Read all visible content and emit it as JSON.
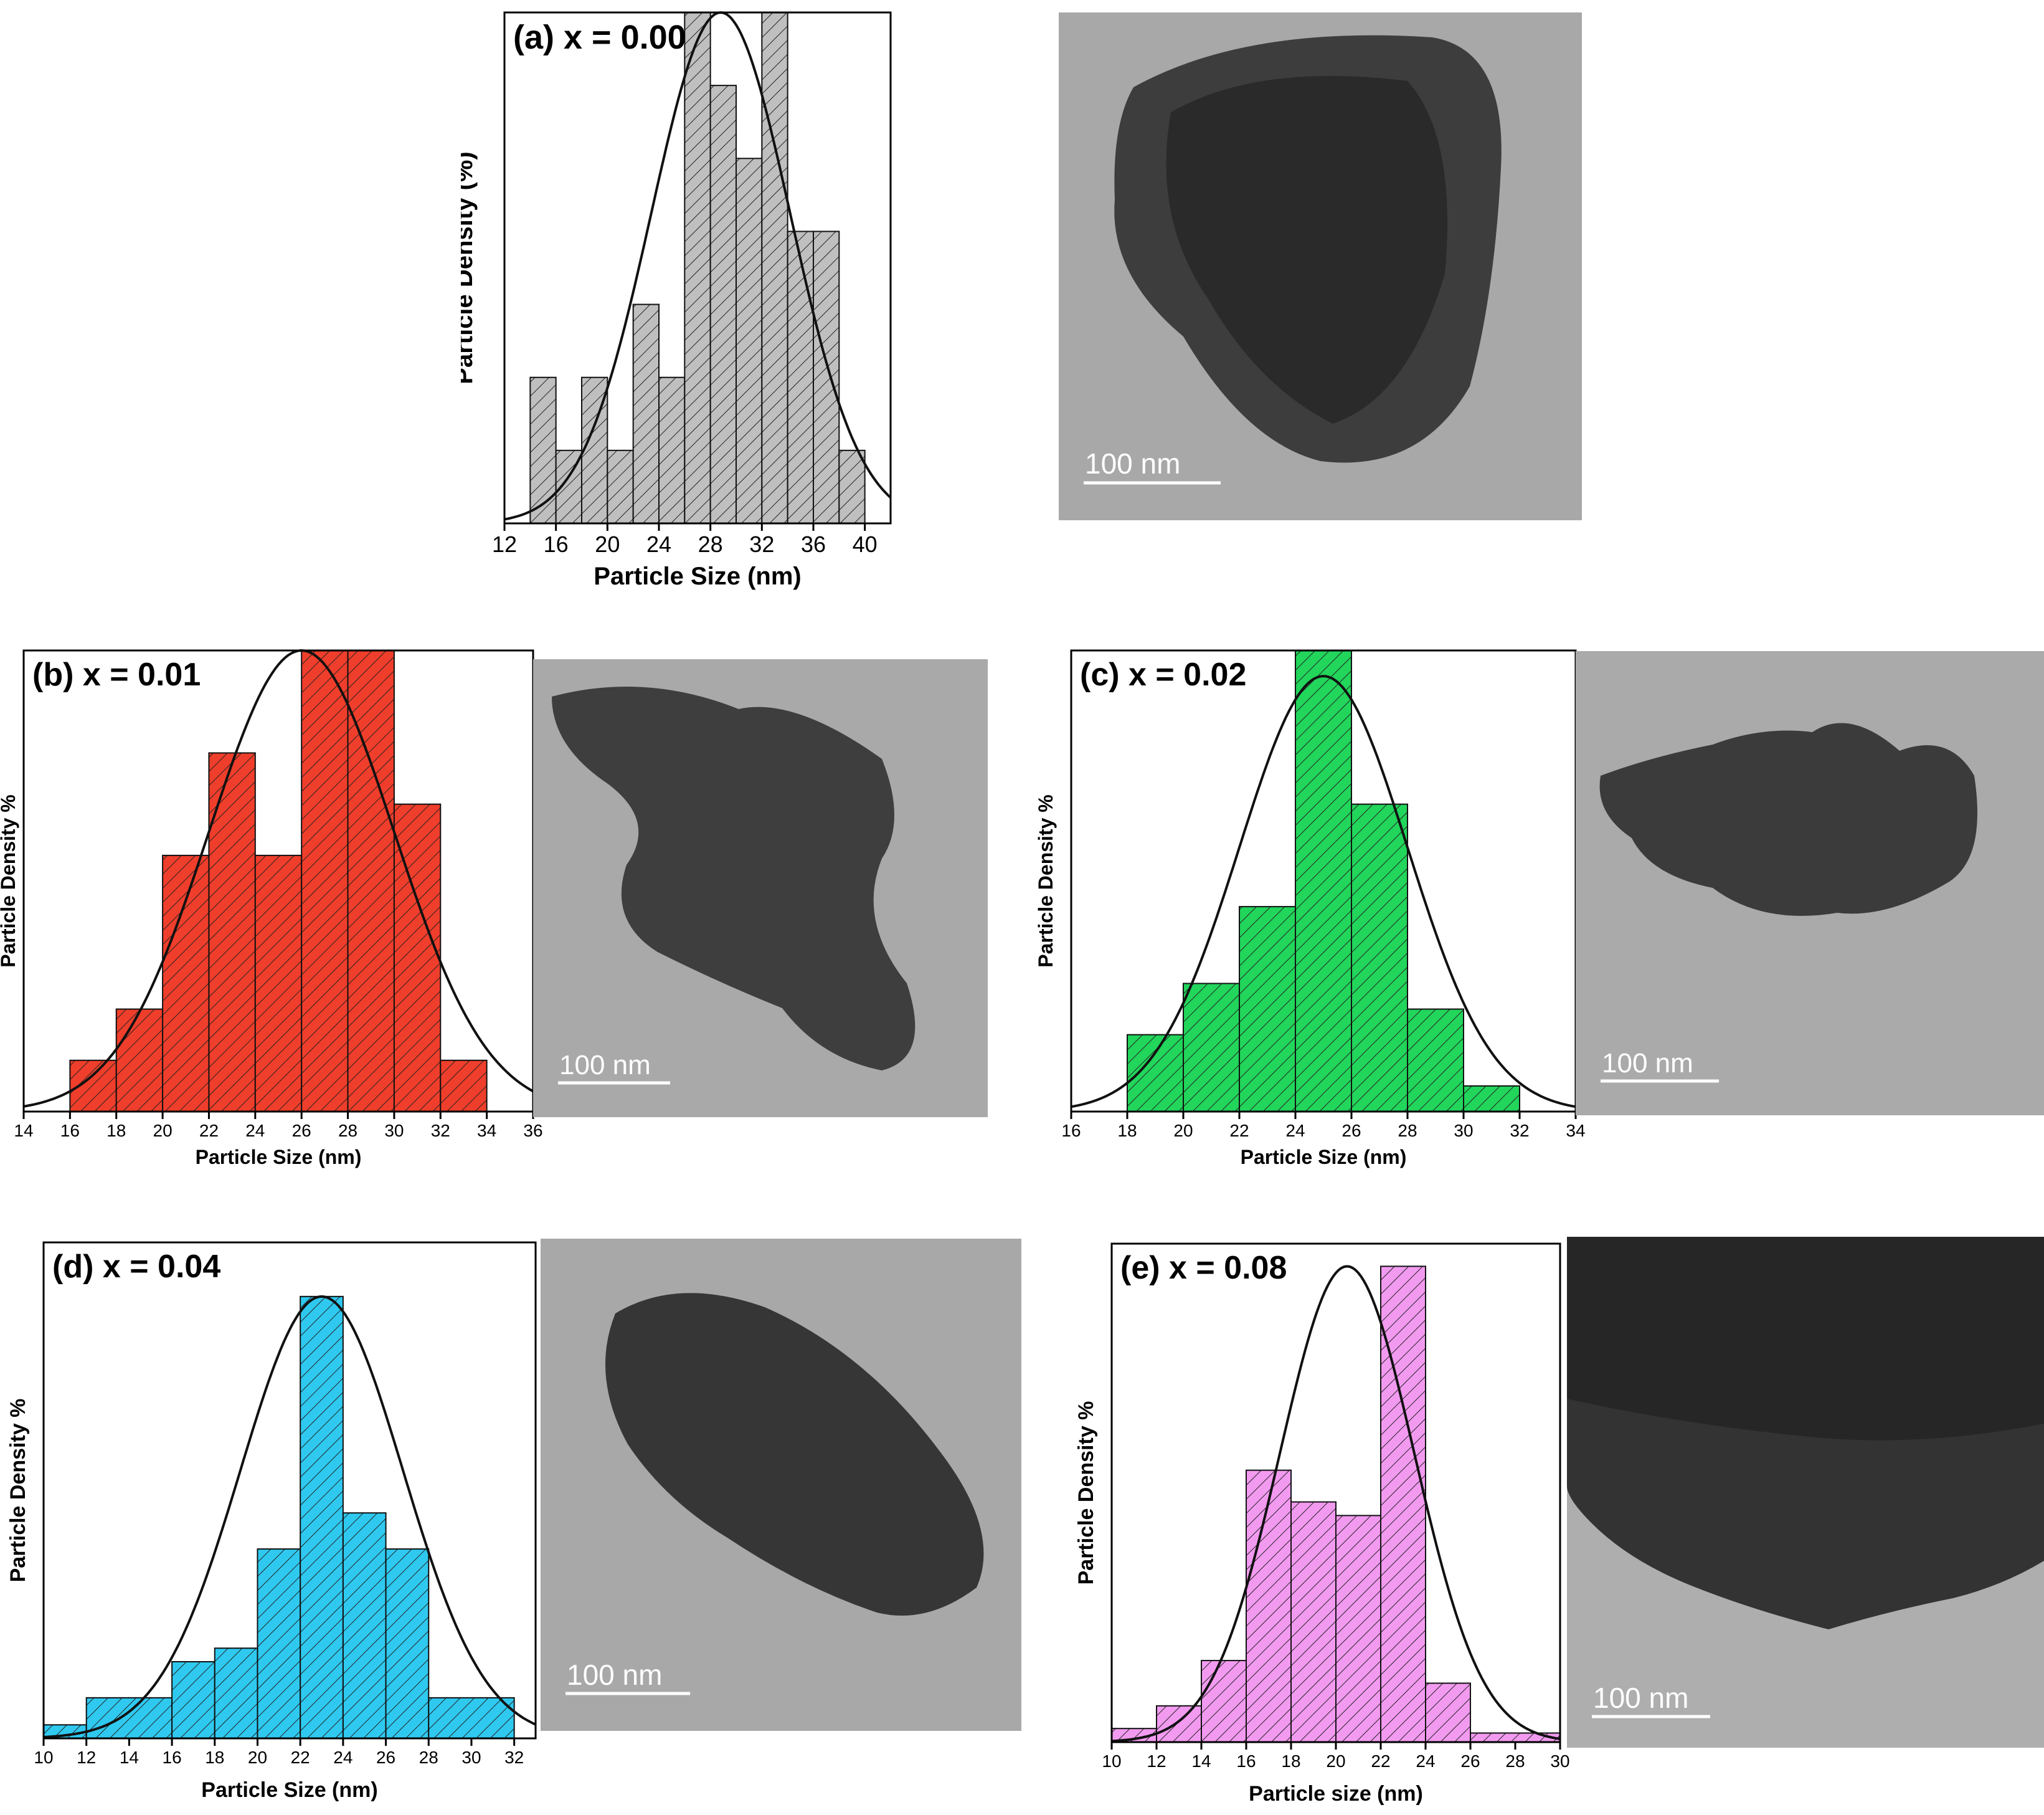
{
  "colors": {
    "a": "#bfbfbf",
    "b": "#ef3e2b",
    "c": "#22d55b",
    "d": "#2fc9f0",
    "e": "#f29af0"
  },
  "chart_data": [
    {
      "id": "a",
      "type": "bar",
      "title": "(a) x = 0.00",
      "xlabel": "Particle Size (nm)",
      "ylabel": "Particle Density (%)",
      "xlim": [
        12,
        42
      ],
      "ylim": [
        0,
        7
      ],
      "xticks": [
        12,
        16,
        20,
        24,
        28,
        32,
        36,
        40
      ],
      "bins": [
        [
          14,
          16,
          2
        ],
        [
          16,
          18,
          1
        ],
        [
          18,
          20,
          2
        ],
        [
          20,
          22,
          1
        ],
        [
          22,
          24,
          3
        ],
        [
          24,
          26,
          2
        ],
        [
          26,
          28,
          7
        ],
        [
          28,
          30,
          6
        ],
        [
          30,
          32,
          5
        ],
        [
          32,
          34,
          7
        ],
        [
          34,
          36,
          4
        ],
        [
          36,
          38,
          4
        ],
        [
          38,
          40,
          1
        ]
      ],
      "fit": {
        "mean": 28.8,
        "sd": 5.4,
        "peak": 7.0
      },
      "scale_bar": "100 nm"
    },
    {
      "id": "b",
      "type": "bar",
      "title": "(b) x = 0.01",
      "xlabel": "Particle Size (nm)",
      "ylabel": "Particle Density %",
      "xlim": [
        14,
        36
      ],
      "ylim": [
        0,
        9
      ],
      "xticks": [
        14,
        16,
        18,
        20,
        22,
        24,
        26,
        28,
        30,
        32,
        34,
        36
      ],
      "bins": [
        [
          16,
          18,
          1
        ],
        [
          18,
          20,
          2
        ],
        [
          20,
          22,
          5
        ],
        [
          22,
          24,
          7
        ],
        [
          24,
          26,
          5
        ],
        [
          26,
          28,
          9
        ],
        [
          28,
          30,
          9
        ],
        [
          30,
          32,
          6
        ],
        [
          32,
          34,
          1
        ]
      ],
      "fit": {
        "mean": 26.0,
        "sd": 4.0,
        "peak": 9.0
      },
      "scale_bar": "100 nm"
    },
    {
      "id": "c",
      "type": "bar",
      "title": "(c) x = 0.02",
      "xlabel": "Particle Size (nm)",
      "ylabel": "Particle Density %",
      "xlim": [
        16,
        34
      ],
      "ylim": [
        0,
        9
      ],
      "xticks": [
        16,
        18,
        20,
        22,
        24,
        26,
        28,
        30,
        32,
        34
      ],
      "bins": [
        [
          18,
          20,
          1.5
        ],
        [
          20,
          22,
          2.5
        ],
        [
          22,
          24,
          4
        ],
        [
          24,
          26,
          9
        ],
        [
          26,
          28,
          6
        ],
        [
          28,
          30,
          2
        ],
        [
          30,
          32,
          0.5
        ]
      ],
      "fit": {
        "mean": 25.0,
        "sd": 3.0,
        "peak": 8.5
      },
      "scale_bar": "100 nm"
    },
    {
      "id": "d",
      "type": "bar",
      "title": "(d) x = 0.04",
      "xlabel": "Particle Size (nm)",
      "ylabel": "Particle Density %",
      "xlim": [
        10,
        33
      ],
      "ylim": [
        0,
        11
      ],
      "xticks": [
        10,
        12,
        14,
        16,
        18,
        20,
        22,
        24,
        26,
        28,
        30,
        32
      ],
      "bins": [
        [
          10,
          12,
          0.3
        ],
        [
          12,
          16,
          0.9
        ],
        [
          16,
          18,
          1.7
        ],
        [
          18,
          20,
          2.0
        ],
        [
          20,
          22,
          4.2
        ],
        [
          22,
          24,
          9.8
        ],
        [
          24,
          26,
          5.0
        ],
        [
          26,
          28,
          4.2
        ],
        [
          28,
          32,
          0.9
        ]
      ],
      "fit": {
        "mean": 23.0,
        "sd": 3.8,
        "peak": 9.8
      },
      "scale_bar": "100 nm"
    },
    {
      "id": "e",
      "type": "bar",
      "title": "(e) x = 0.08",
      "xlabel": "Particle size (nm)",
      "ylabel": "Particle Density %",
      "xlim": [
        10,
        30
      ],
      "ylim": [
        0,
        11
      ],
      "xticks": [
        10,
        12,
        14,
        16,
        18,
        20,
        22,
        24,
        26,
        28,
        30
      ],
      "bins": [
        [
          10,
          12,
          0.3
        ],
        [
          12,
          14,
          0.8
        ],
        [
          14,
          16,
          1.8
        ],
        [
          16,
          18,
          6.0
        ],
        [
          18,
          20,
          5.3
        ],
        [
          20,
          22,
          5.0
        ],
        [
          22,
          24,
          10.5
        ],
        [
          24,
          26,
          1.3
        ],
        [
          26,
          30,
          0.2
        ]
      ],
      "fit": {
        "mean": 20.5,
        "sd": 3.0,
        "peak": 10.5
      },
      "scale_bar": "100 nm"
    }
  ]
}
